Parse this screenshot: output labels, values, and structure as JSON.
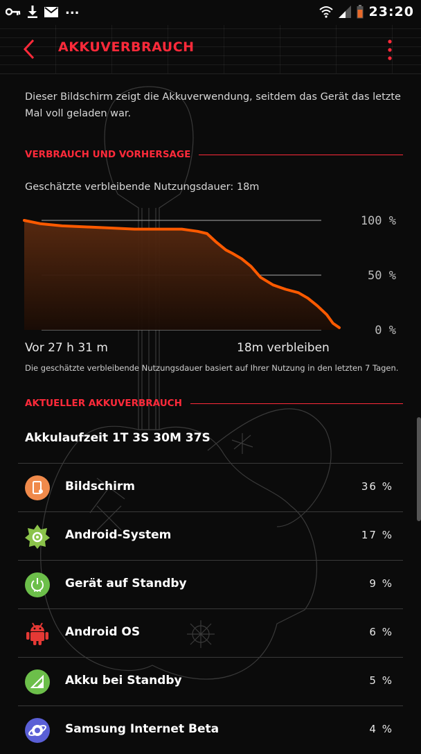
{
  "status_bar": {
    "time": "23:20",
    "left_icons": [
      "key-icon",
      "download-icon",
      "mail-icon"
    ],
    "overflow": "...",
    "right_icons": [
      "wifi-icon",
      "signal-icon",
      "battery-icon"
    ]
  },
  "header": {
    "title": "AKKUVERBRAUCH",
    "accent_color": "#ff2a3a"
  },
  "description": "Dieser Bildschirm zeigt die Akkuverwendung, seitdem das Gerät das letzte Mal voll geladen war.",
  "usage_section": {
    "heading": "VERBRAUCH UND VORHERSAGE",
    "estimate_text": "Geschätzte verbleibende Nutzungsdauer: 18m",
    "x_left_label": "Vor 27 h 31 m",
    "x_right_label": "18m verbleiben",
    "note": "Die geschätzte verbleibende Nutzungsdauer basiert auf Ihrer Nutzung in den letzten 7 Tagen."
  },
  "chart_data": {
    "type": "area",
    "y_ticks": [
      "100 %",
      "50 %",
      "0 %"
    ],
    "ylim": [
      0,
      100
    ],
    "xlim": [
      0,
      100
    ],
    "grid": true,
    "line_color": "#ff5a00",
    "points": [
      [
        0,
        100
      ],
      [
        5,
        97
      ],
      [
        12,
        95
      ],
      [
        20,
        94
      ],
      [
        28,
        93
      ],
      [
        35,
        92
      ],
      [
        42,
        92
      ],
      [
        50,
        92
      ],
      [
        55,
        90
      ],
      [
        58,
        88
      ],
      [
        61,
        80
      ],
      [
        64,
        73
      ],
      [
        66,
        70
      ],
      [
        69,
        65
      ],
      [
        72,
        58
      ],
      [
        75,
        48
      ],
      [
        79,
        41
      ],
      [
        83,
        37
      ],
      [
        87,
        34
      ],
      [
        90,
        29
      ],
      [
        93,
        22
      ],
      [
        96,
        14
      ],
      [
        98,
        6
      ],
      [
        100,
        2
      ]
    ]
  },
  "current_section": {
    "heading": "AKTUELLER AKKUVERBRAUCH",
    "uptime": "Akkulaufzeit 1T 3S 30M 37S"
  },
  "apps": [
    {
      "name": "Bildschirm",
      "percent": "36 %",
      "icon": "screen-icon",
      "color": "#f08a4b"
    },
    {
      "name": "Android-System",
      "percent": "17 %",
      "icon": "android-system-gear-icon",
      "color": "#8bc34a"
    },
    {
      "name": "Gerät auf Standby",
      "percent": "9 %",
      "icon": "power-standby-icon",
      "color": "#6cbf4a"
    },
    {
      "name": "Android OS",
      "percent": "6 %",
      "icon": "android-robot-icon",
      "color": "#e53935"
    },
    {
      "name": "Akku bei Standby",
      "percent": "5 %",
      "icon": "cell-standby-icon",
      "color": "#6cbf4a"
    },
    {
      "name": "Samsung Internet Beta",
      "percent": "4 %",
      "icon": "samsung-internet-icon",
      "color": "#5a5fd6"
    }
  ]
}
